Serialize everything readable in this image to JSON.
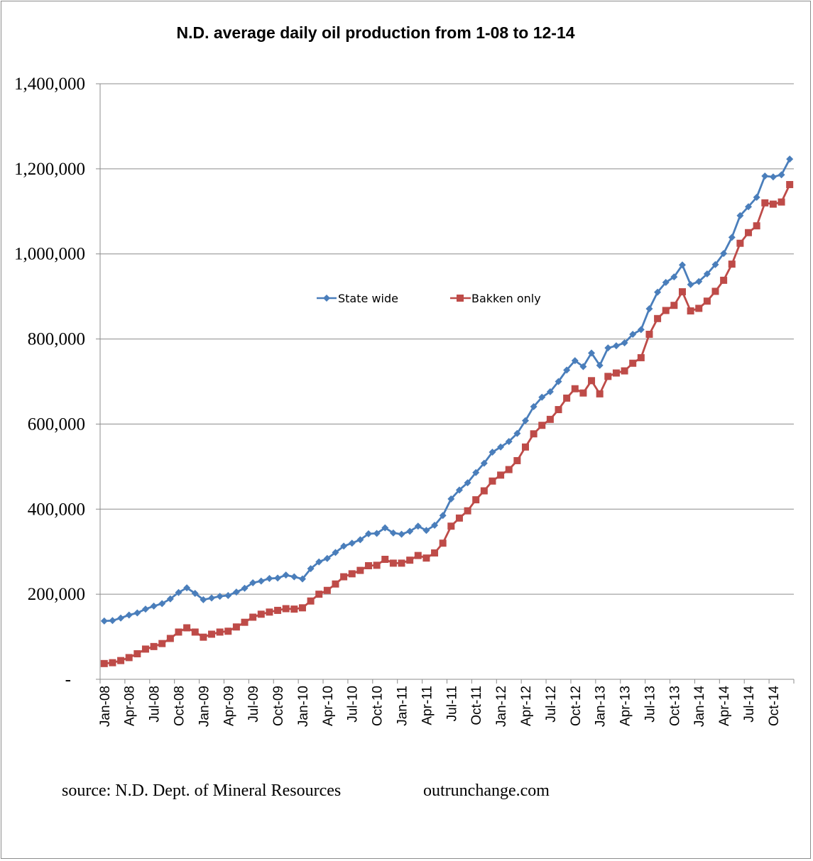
{
  "chart_data": {
    "type": "line",
    "title": "N.D. average daily oil production from 1-08 to 12-14",
    "xlabel": "",
    "ylabel": "",
    "ylim": [
      0,
      1400000
    ],
    "yticks": [
      0,
      200000,
      400000,
      600000,
      800000,
      1000000,
      1200000,
      1400000
    ],
    "ytick_labels": [
      "-",
      "200,000",
      "400,000",
      "600,000",
      "800,000",
      "1,000,000",
      "1,200,000",
      "1,400,000"
    ],
    "grid": true,
    "legend_position": "center",
    "x_tick_labels": [
      "Jan-08",
      "Apr-08",
      "Jul-08",
      "Oct-08",
      "Jan-09",
      "Apr-09",
      "Jul-09",
      "Oct-09",
      "Jan-10",
      "Apr-10",
      "Jul-10",
      "Oct-10",
      "Jan-11",
      "Apr-11",
      "Jul-11",
      "Oct-11",
      "Jan-12",
      "Apr-12",
      "Jul-12",
      "Oct-12",
      "Jan-13",
      "Apr-13",
      "Jul-13",
      "Oct-13",
      "Jan-14",
      "Apr-14",
      "Jul-14",
      "Oct-14"
    ],
    "x_start": "Jan-08",
    "x_count": 84,
    "series": [
      {
        "name": "State wide",
        "color": "#4a7ebb",
        "marker": "diamond",
        "values": [
          137000,
          138000,
          144000,
          151000,
          156000,
          165000,
          172000,
          178000,
          189000,
          204000,
          215000,
          202000,
          187000,
          191000,
          195000,
          197000,
          205000,
          214000,
          227000,
          231000,
          237000,
          238000,
          245000,
          241000,
          236000,
          260000,
          276000,
          284000,
          298000,
          313000,
          320000,
          328000,
          342000,
          343000,
          356000,
          344000,
          341000,
          348000,
          360000,
          350000,
          362000,
          385000,
          424000,
          445000,
          462000,
          486000,
          508000,
          534000,
          546000,
          559000,
          578000,
          608000,
          641000,
          663000,
          676000,
          700000,
          727000,
          749000,
          735000,
          767000,
          738000,
          779000,
          784000,
          791000,
          811000,
          822000,
          871000,
          910000,
          933000,
          946000,
          974000,
          928000,
          935000,
          953000,
          975000,
          1001000,
          1039000,
          1090000,
          1111000,
          1133000,
          1183000,
          1181000,
          1186000,
          1223000
        ]
      },
      {
        "name": "Bakken only",
        "color": "#be4b48",
        "marker": "square",
        "values": [
          37000,
          39000,
          44000,
          51000,
          60000,
          71000,
          77000,
          84000,
          96000,
          111000,
          121000,
          111000,
          99000,
          106000,
          111000,
          113000,
          123000,
          134000,
          146000,
          153000,
          158000,
          162000,
          166000,
          165000,
          168000,
          184000,
          200000,
          209000,
          224000,
          241000,
          248000,
          256000,
          267000,
          268000,
          282000,
          273000,
          273000,
          280000,
          291000,
          285000,
          297000,
          320000,
          360000,
          379000,
          396000,
          422000,
          443000,
          466000,
          480000,
          493000,
          514000,
          546000,
          577000,
          597000,
          611000,
          634000,
          661000,
          683000,
          673000,
          702000,
          671000,
          712000,
          720000,
          725000,
          743000,
          756000,
          811000,
          848000,
          867000,
          879000,
          911000,
          866000,
          872000,
          889000,
          912000,
          938000,
          976000,
          1025000,
          1050000,
          1066000,
          1120000,
          1117000,
          1122000,
          1163000
        ]
      }
    ]
  },
  "footer": {
    "source": "source: N.D. Dept. of Mineral Resources",
    "site": "outrunchange.com"
  }
}
